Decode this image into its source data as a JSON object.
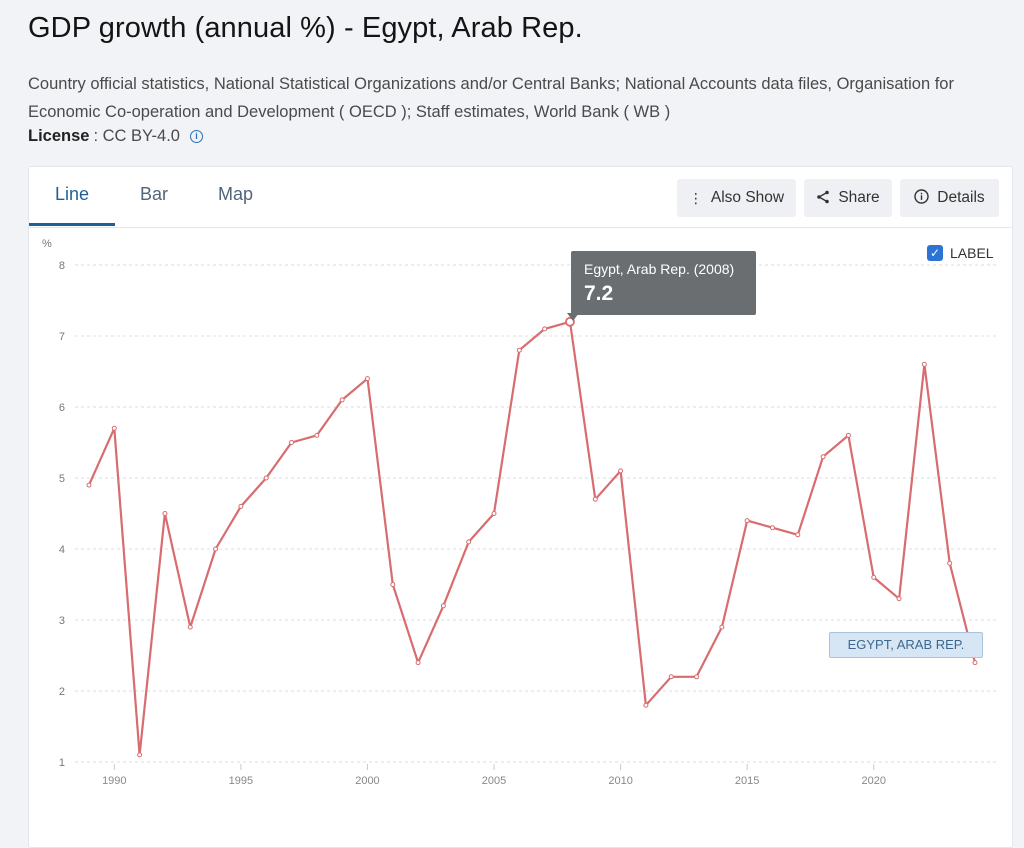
{
  "page": {
    "title": "GDP growth (annual %) - Egypt, Arab Rep.",
    "sources": "Country official statistics, National Statistical Organizations and/or Central Banks; National Accounts data files, Organisation for Economic Co-operation and Development ( OECD ); Staff estimates, World Bank ( WB )",
    "license_label": "License",
    "license_value": ": CC BY-4.0"
  },
  "tabs": [
    {
      "label": "Line",
      "active": true
    },
    {
      "label": "Bar",
      "active": false
    },
    {
      "label": "Map",
      "active": false
    }
  ],
  "toolbar": {
    "also_show": "Also Show",
    "share": "Share",
    "details": "Details"
  },
  "label_toggle": {
    "text": "LABEL",
    "checked": true
  },
  "tooltip": {
    "title": "Egypt, Arab Rep. (2008)",
    "value": "7.2"
  },
  "series_label": "EGYPT, ARAB REP.",
  "colors": {
    "line": "#d86c6e",
    "accent": "#1f5f97"
  },
  "chart_data": {
    "type": "line",
    "title": "",
    "ylabel": "%",
    "ylim": [
      1,
      8
    ],
    "xlim": [
      1989,
      2024
    ],
    "yticks": [
      1,
      2,
      3,
      4,
      5,
      6,
      7,
      8
    ],
    "xticks": [
      1990,
      1995,
      2000,
      2005,
      2010,
      2015,
      2020
    ],
    "grid": true,
    "series": [
      {
        "name": "EGYPT, ARAB REP.",
        "x": [
          1989,
          1990,
          1991,
          1992,
          1993,
          1994,
          1995,
          1996,
          1997,
          1998,
          1999,
          2000,
          2001,
          2002,
          2003,
          2004,
          2005,
          2006,
          2007,
          2008,
          2009,
          2010,
          2011,
          2012,
          2013,
          2014,
          2015,
          2016,
          2017,
          2018,
          2019,
          2020,
          2021,
          2022,
          2023,
          2024
        ],
        "y": [
          4.9,
          5.7,
          1.1,
          4.5,
          2.9,
          4.0,
          4.6,
          5.0,
          5.5,
          5.6,
          6.1,
          6.4,
          3.5,
          2.4,
          3.2,
          4.1,
          4.5,
          6.8,
          7.1,
          7.2,
          4.7,
          5.1,
          1.8,
          2.2,
          2.2,
          2.9,
          4.4,
          4.3,
          4.2,
          5.3,
          5.6,
          3.6,
          3.3,
          6.6,
          3.8,
          2.4
        ]
      }
    ],
    "highlight": {
      "x": 2008,
      "y": 7.2
    }
  }
}
